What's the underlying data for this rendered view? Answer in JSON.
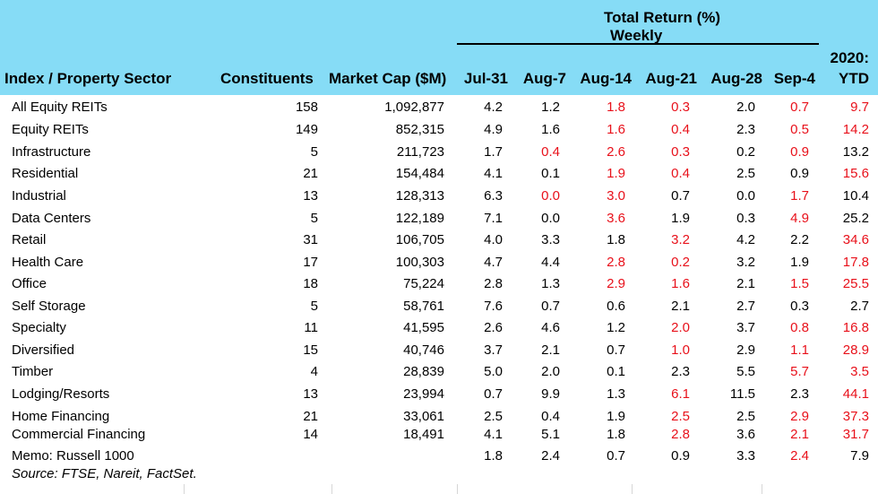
{
  "header": {
    "group_title": "Total Return (%)",
    "group_subtitle": "Weekly",
    "col_sector": "Index / Property Sector",
    "col_constituents": "Constituents",
    "col_marketcap": "Market Cap ($M)",
    "weeks": [
      "Jul-31",
      "Aug-7",
      "Aug-14",
      "Aug-21",
      "Aug-28",
      "Sep-4"
    ],
    "ytd_line1": "2020:",
    "ytd_line2": "YTD"
  },
  "colors": {
    "header_bg": "#86dcf6",
    "highlight_red": "#e8101a"
  },
  "rows": [
    {
      "name": "All Equity REITs",
      "constituents": "158",
      "market_cap": "1,092,877",
      "returns": [
        "4.2",
        "1.2",
        "1.8",
        "0.3",
        "2.0",
        "0.7"
      ],
      "ytd": "9.7",
      "red": [
        2,
        3,
        5
      ],
      "ytd_red": true
    },
    {
      "name": "Equity REITs",
      "constituents": "149",
      "market_cap": "852,315",
      "returns": [
        "4.9",
        "1.6",
        "1.6",
        "0.4",
        "2.3",
        "0.5"
      ],
      "ytd": "14.2",
      "red": [
        2,
        3,
        5
      ],
      "ytd_red": true
    },
    {
      "name": "Infrastructure",
      "constituents": "5",
      "market_cap": "211,723",
      "returns": [
        "1.7",
        "0.4",
        "2.6",
        "0.3",
        "0.2",
        "0.9"
      ],
      "ytd": "13.2",
      "red": [
        1,
        2,
        3,
        5
      ],
      "ytd_red": false
    },
    {
      "name": "Residential",
      "constituents": "21",
      "market_cap": "154,484",
      "returns": [
        "4.1",
        "0.1",
        "1.9",
        "0.4",
        "2.5",
        "0.9"
      ],
      "ytd": "15.6",
      "red": [
        2,
        3
      ],
      "ytd_red": true
    },
    {
      "name": "Industrial",
      "constituents": "13",
      "market_cap": "128,313",
      "returns": [
        "6.3",
        "0.0",
        "3.0",
        "0.7",
        "0.0",
        "1.7"
      ],
      "ytd": "10.4",
      "red": [
        1,
        2,
        5
      ],
      "ytd_red": false
    },
    {
      "name": "Data Centers",
      "constituents": "5",
      "market_cap": "122,189",
      "returns": [
        "7.1",
        "0.0",
        "3.6",
        "1.9",
        "0.3",
        "4.9"
      ],
      "ytd": "25.2",
      "red": [
        2,
        5
      ],
      "ytd_red": false
    },
    {
      "name": "Retail",
      "constituents": "31",
      "market_cap": "106,705",
      "returns": [
        "4.0",
        "3.3",
        "1.8",
        "3.2",
        "4.2",
        "2.2"
      ],
      "ytd": "34.6",
      "red": [
        3
      ],
      "ytd_red": true
    },
    {
      "name": "Health Care",
      "constituents": "17",
      "market_cap": "100,303",
      "returns": [
        "4.7",
        "4.4",
        "2.8",
        "0.2",
        "3.2",
        "1.9"
      ],
      "ytd": "17.8",
      "red": [
        2,
        3
      ],
      "ytd_red": true
    },
    {
      "name": "Office",
      "constituents": "18",
      "market_cap": "75,224",
      "returns": [
        "2.8",
        "1.3",
        "2.9",
        "1.6",
        "2.1",
        "1.5"
      ],
      "ytd": "25.5",
      "red": [
        2,
        3,
        5
      ],
      "ytd_red": true
    },
    {
      "name": "Self Storage",
      "constituents": "5",
      "market_cap": "58,761",
      "returns": [
        "7.6",
        "0.7",
        "0.6",
        "2.1",
        "2.7",
        "0.3"
      ],
      "ytd": "2.7",
      "red": [],
      "ytd_red": false
    },
    {
      "name": "Specialty",
      "constituents": "11",
      "market_cap": "41,595",
      "returns": [
        "2.6",
        "4.6",
        "1.2",
        "2.0",
        "3.7",
        "0.8"
      ],
      "ytd": "16.8",
      "red": [
        3,
        5
      ],
      "ytd_red": true
    },
    {
      "name": "Diversified",
      "constituents": "15",
      "market_cap": "40,746",
      "returns": [
        "3.7",
        "2.1",
        "0.7",
        "1.0",
        "2.9",
        "1.1"
      ],
      "ytd": "28.9",
      "red": [
        3,
        5
      ],
      "ytd_red": true
    },
    {
      "name": "Timber",
      "constituents": "4",
      "market_cap": "28,839",
      "returns": [
        "5.0",
        "2.0",
        "0.1",
        "2.3",
        "5.5",
        "5.7"
      ],
      "ytd": "3.5",
      "red": [
        5
      ],
      "ytd_red": true
    },
    {
      "name": "Lodging/Resorts",
      "constituents": "13",
      "market_cap": "23,994",
      "returns": [
        "0.7",
        "9.9",
        "1.3",
        "6.1",
        "11.5",
        "2.3"
      ],
      "ytd": "44.1",
      "red": [
        3
      ],
      "ytd_red": true
    },
    {
      "name": "Home Financing",
      "constituents": "21",
      "market_cap": "33,061",
      "returns": [
        "2.5",
        "0.4",
        "1.9",
        "2.5",
        "2.5",
        "2.9"
      ],
      "ytd": "37.3",
      "red": [
        3,
        5
      ],
      "ytd_red": true
    },
    {
      "name": "Commercial Financing",
      "constituents": "14",
      "market_cap": "18,491",
      "returns": [
        "4.1",
        "5.1",
        "1.8",
        "2.8",
        "3.6",
        "2.1"
      ],
      "ytd": "31.7",
      "red": [
        3,
        5
      ],
      "ytd_red": true
    },
    {
      "name": "Memo: Russell 1000",
      "constituents": "",
      "market_cap": "",
      "returns": [
        "1.8",
        "2.4",
        "0.7",
        "0.9",
        "3.3",
        "2.4"
      ],
      "ytd": "7.9",
      "red": [
        5
      ],
      "ytd_red": false
    }
  ],
  "source": "Source: FTSE, Nareit, FactSet."
}
